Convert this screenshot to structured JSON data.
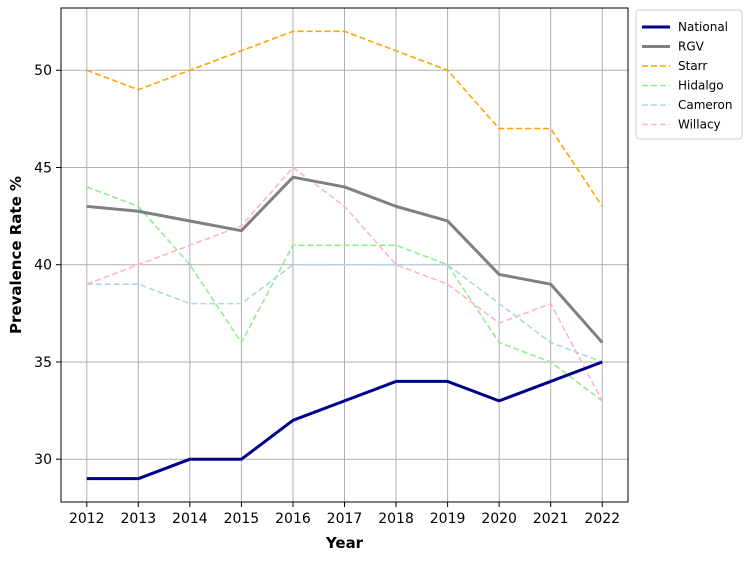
{
  "chart_data": {
    "type": "line",
    "title": "",
    "xlabel": "Year",
    "ylabel": "Prevalence Rate %",
    "x": [
      2012,
      2013,
      2014,
      2015,
      2016,
      2017,
      2018,
      2019,
      2020,
      2021,
      2022
    ],
    "xlim": [
      2011.5,
      2022.5
    ],
    "ylim": [
      27.8,
      53.2
    ],
    "yticks": [
      30,
      35,
      40,
      45,
      50
    ],
    "grid": true,
    "legend_position": "outside-right-top",
    "series": [
      {
        "name": "National",
        "style": "solid-thick",
        "color": "#00008b",
        "values": [
          29,
          29,
          30,
          30,
          32,
          33,
          34,
          34,
          33,
          34,
          35
        ]
      },
      {
        "name": "RGV",
        "style": "solid-thick",
        "color": "#808080",
        "values": [
          43,
          42.75,
          42.25,
          41.75,
          44.5,
          44,
          43,
          42.25,
          39.5,
          39,
          36
        ]
      },
      {
        "name": "Starr",
        "style": "dashed",
        "color": "#ffa500",
        "values": [
          50,
          49,
          50,
          51,
          52,
          52,
          51,
          50,
          47,
          47,
          43
        ]
      },
      {
        "name": "Hidalgo",
        "style": "dashed",
        "color": "#90ee90",
        "values": [
          44,
          43,
          40,
          36,
          41,
          41,
          41,
          40,
          36,
          35,
          33
        ]
      },
      {
        "name": "Cameron",
        "style": "dashed",
        "color": "#add8e6",
        "values": [
          39,
          39,
          38,
          38,
          40,
          40,
          40,
          40,
          38,
          36,
          35
        ]
      },
      {
        "name": "Willacy",
        "style": "dashed",
        "color": "#ffb6c1",
        "values": [
          39,
          40,
          41,
          42,
          45,
          43,
          40,
          39,
          37,
          38,
          33
        ]
      }
    ]
  }
}
